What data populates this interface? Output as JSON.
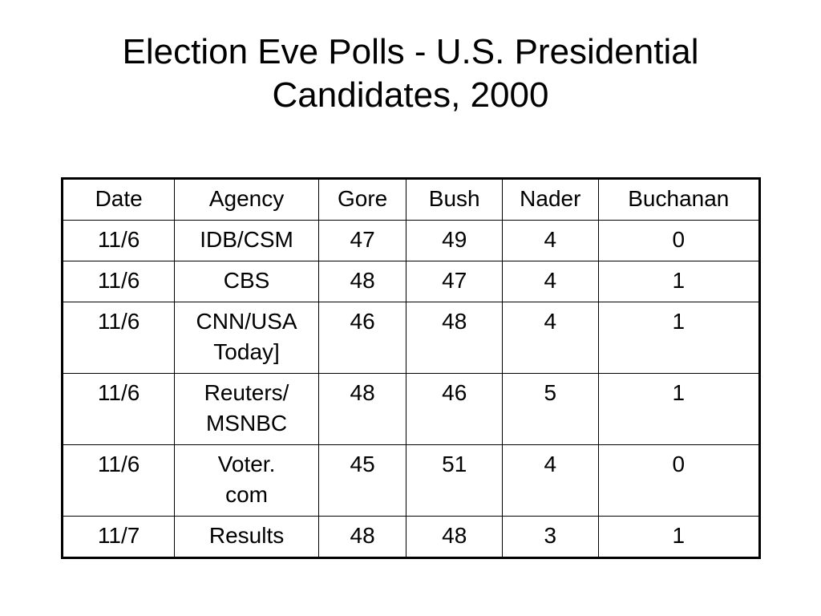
{
  "title": {
    "line1": "Election Eve Polls - U.S. Presidential",
    "line2": "Candidates, 2000"
  },
  "table": {
    "headers": [
      "Date",
      "Agency",
      "Gore",
      "Bush",
      "Nader",
      "Buchanan"
    ],
    "rows": [
      {
        "date": "11/6",
        "agency": [
          "IDB/CSM"
        ],
        "gore": "47",
        "bush": "49",
        "nader": "4",
        "buchanan": "0"
      },
      {
        "date": "11/6",
        "agency": [
          "CBS"
        ],
        "gore": "48",
        "bush": "47",
        "nader": "4",
        "buchanan": "1"
      },
      {
        "date": "11/6",
        "agency": [
          "CNN/USA",
          "Today]"
        ],
        "gore": "46",
        "bush": "48",
        "nader": "4",
        "buchanan": "1"
      },
      {
        "date": "11/6",
        "agency": [
          "Reuters/",
          "MSNBC"
        ],
        "gore": "48",
        "bush": "46",
        "nader": "5",
        "buchanan": "1"
      },
      {
        "date": "11/6",
        "agency": [
          "Voter.",
          "com"
        ],
        "gore": "45",
        "bush": "51",
        "nader": "4",
        "buchanan": "0"
      },
      {
        "date": "11/7",
        "agency": [
          "Results"
        ],
        "gore": "48",
        "bush": "48",
        "nader": "3",
        "buchanan": "1"
      }
    ]
  }
}
